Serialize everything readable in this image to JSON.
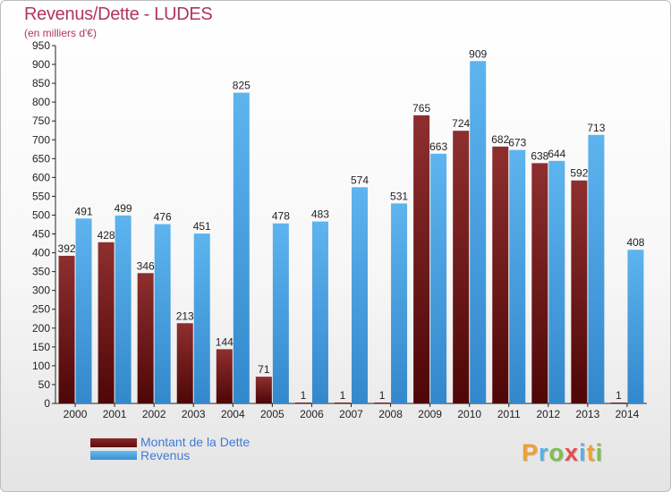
{
  "title": "Revenus/Dette - LUDES",
  "subtitle": "(en milliers d'€)",
  "colors": {
    "dette": "#6e1717",
    "revenus": "#4ba3e3",
    "title": "#b0365a",
    "legend_text": "#3f7ad8"
  },
  "legend": {
    "dette": "Montant de la Dette",
    "revenus": "Revenus"
  },
  "logo": {
    "text": "Proxiti",
    "letters": [
      "P",
      "r",
      "o",
      "x",
      "i",
      "t",
      "i"
    ],
    "colors": [
      "#f0a030",
      "#5ab0e0",
      "#7cc04a",
      "#e05050",
      "#5ab0e0",
      "#f0a030",
      "#7cc04a"
    ]
  },
  "chart_data": {
    "type": "bar",
    "title": "Revenus/Dette - LUDES",
    "subtitle": "(en milliers d'€)",
    "categories": [
      "2000",
      "2001",
      "2002",
      "2003",
      "2004",
      "2005",
      "2006",
      "2007",
      "2008",
      "2009",
      "2010",
      "2011",
      "2012",
      "2013",
      "2014"
    ],
    "series": [
      {
        "name": "Montant de la Dette",
        "values": [
          392,
          428,
          346,
          213,
          144,
          71,
          1,
          1,
          1,
          765,
          724,
          682,
          638,
          592,
          1
        ]
      },
      {
        "name": "Revenus",
        "values": [
          491,
          499,
          476,
          451,
          825,
          478,
          483,
          574,
          531,
          663,
          909,
          673,
          644,
          713,
          408
        ]
      }
    ],
    "ylim": [
      0,
      950
    ],
    "ytick_step": 50,
    "grid": false,
    "legend_position": "bottom-left"
  }
}
